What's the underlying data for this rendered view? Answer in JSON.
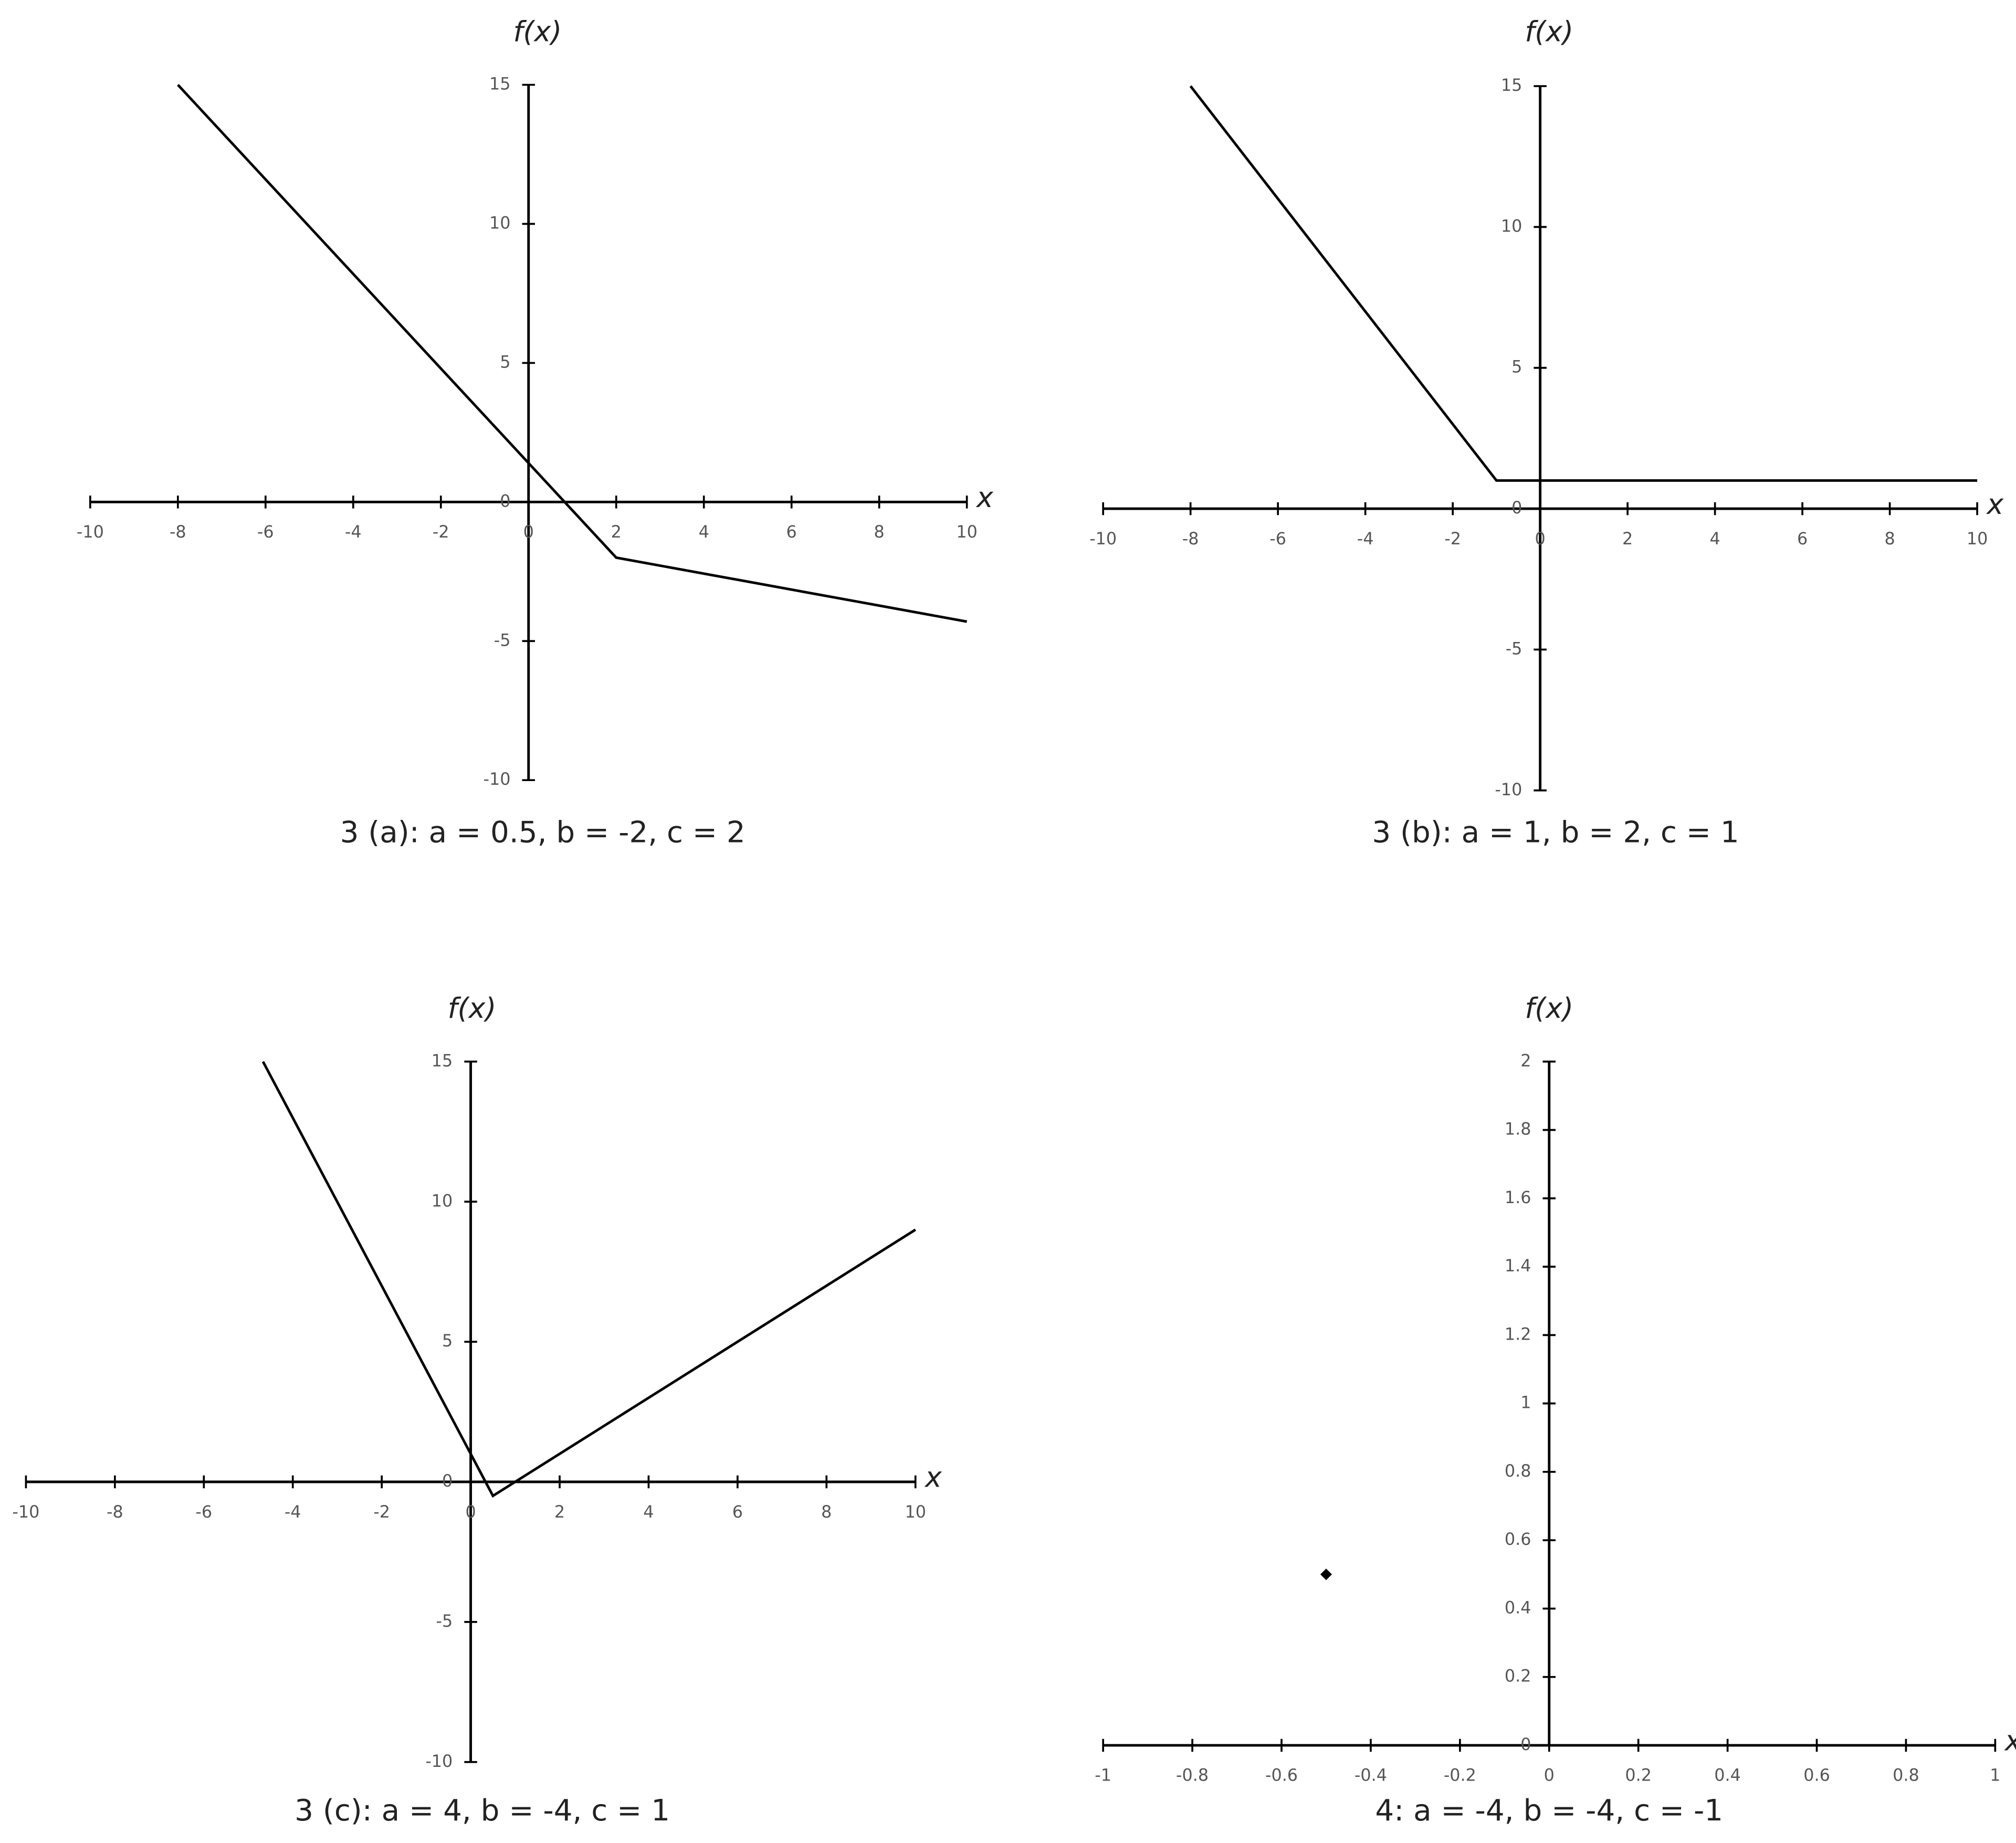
{
  "chart_data": [
    {
      "type": "line",
      "title": "3 (a): a = 0.5, b = -2, c = 2",
      "xlabel": "x",
      "ylabel": "f(x)",
      "x": [
        -8,
        2,
        10
      ],
      "values": [
        15,
        -2,
        -4.3
      ],
      "color": "#000000",
      "xlim": [
        -10,
        10
      ],
      "xticks": [
        -10,
        -8,
        -6,
        -4,
        -2,
        0,
        2,
        4,
        6,
        8,
        10
      ],
      "ylim": [
        -10,
        15
      ],
      "yticks": [
        -10,
        -5,
        0,
        5,
        10,
        15
      ]
    },
    {
      "type": "line",
      "title": "3 (b): a = 1, b = 2, c = 1",
      "xlabel": "x",
      "ylabel": "f(x)",
      "x": [
        -8,
        -1,
        10
      ],
      "values": [
        15,
        1,
        1
      ],
      "color": "#000000",
      "xlim": [
        -10,
        10
      ],
      "xticks": [
        -10,
        -8,
        -6,
        -4,
        -2,
        0,
        2,
        4,
        6,
        8,
        10
      ],
      "ylim": [
        -10,
        15
      ],
      "yticks": [
        -10,
        -5,
        0,
        5,
        10,
        15
      ]
    },
    {
      "type": "line",
      "title": "3 (c): a = 4, b = -4, c = 1",
      "xlabel": "x",
      "ylabel": "f(x)",
      "x": [
        -4.67,
        0.5,
        10
      ],
      "values": [
        15,
        -0.5,
        9
      ],
      "color": "#000000",
      "xlim": [
        -10,
        10
      ],
      "xticks": [
        -10,
        -8,
        -6,
        -4,
        -2,
        0,
        2,
        4,
        6,
        8,
        10
      ],
      "ylim": [
        -10,
        15
      ],
      "yticks": [
        -10,
        -5,
        0,
        5,
        10,
        15
      ]
    },
    {
      "type": "scatter",
      "title": "4: a = -4, b = -4, c = -1",
      "xlabel": "x",
      "ylabel": "f(x)",
      "x": [
        -0.5
      ],
      "values": [
        0.5
      ],
      "color": "#000000",
      "xlim": [
        -1,
        1
      ],
      "xticks": [
        -1,
        -0.8,
        -0.6,
        -0.4,
        -0.2,
        0,
        0.2,
        0.4,
        0.6,
        0.8,
        1
      ],
      "ylim": [
        0,
        2
      ],
      "yticks": [
        0,
        0.2,
        0.4,
        0.6,
        0.8,
        1,
        1.2,
        1.4,
        1.6,
        1.8,
        2
      ]
    }
  ]
}
